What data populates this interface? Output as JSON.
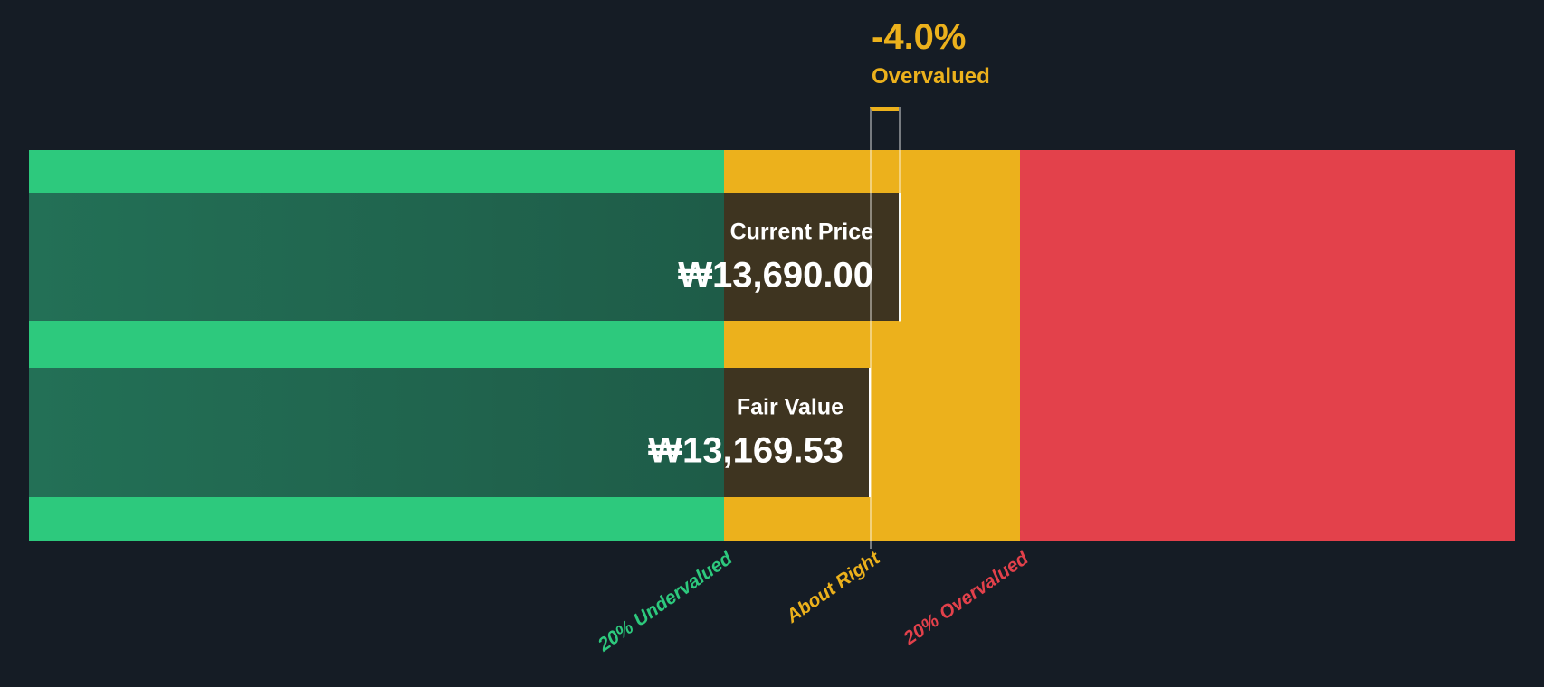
{
  "colors": {
    "background": "#151C25",
    "undervalued_zone": "#2DC97D",
    "about_right_zone": "#ECB11C",
    "overvalued_zone": "#E3414B",
    "bar_green_left": "#237056",
    "bar_green_right": "#1E5C48",
    "bar_amber_dark": "#3E3420",
    "marker_line": "rgba(255,255,255,0.42)"
  },
  "badge": {
    "percent": "-4.0%",
    "label": "Overvalued"
  },
  "current_price": {
    "label": "Current Price",
    "value": "₩13,690.00"
  },
  "fair_value": {
    "label": "Fair Value",
    "value": "₩13,169.53"
  },
  "axis": {
    "undervalued": "20% Undervalued",
    "about_right": "About Right",
    "overvalued": "20% Overvalued"
  },
  "chart_data": {
    "type": "bar",
    "orientation": "horizontal",
    "currency_symbol": "₩",
    "series": [
      {
        "name": "Current Price",
        "value": 13690.0,
        "display": "₩13,690.00"
      },
      {
        "name": "Fair Value",
        "value": 13169.53,
        "display": "₩13,169.53"
      }
    ],
    "annotation": {
      "percent": -4.0,
      "display": "-4.0%",
      "status": "Overvalued"
    },
    "zones": [
      {
        "label": "20% Undervalued",
        "color": "#2DC97D"
      },
      {
        "label": "About Right",
        "color": "#ECB11C"
      },
      {
        "label": "20% Overvalued",
        "color": "#E3414B"
      }
    ],
    "grid": false,
    "legend_position": "none"
  }
}
